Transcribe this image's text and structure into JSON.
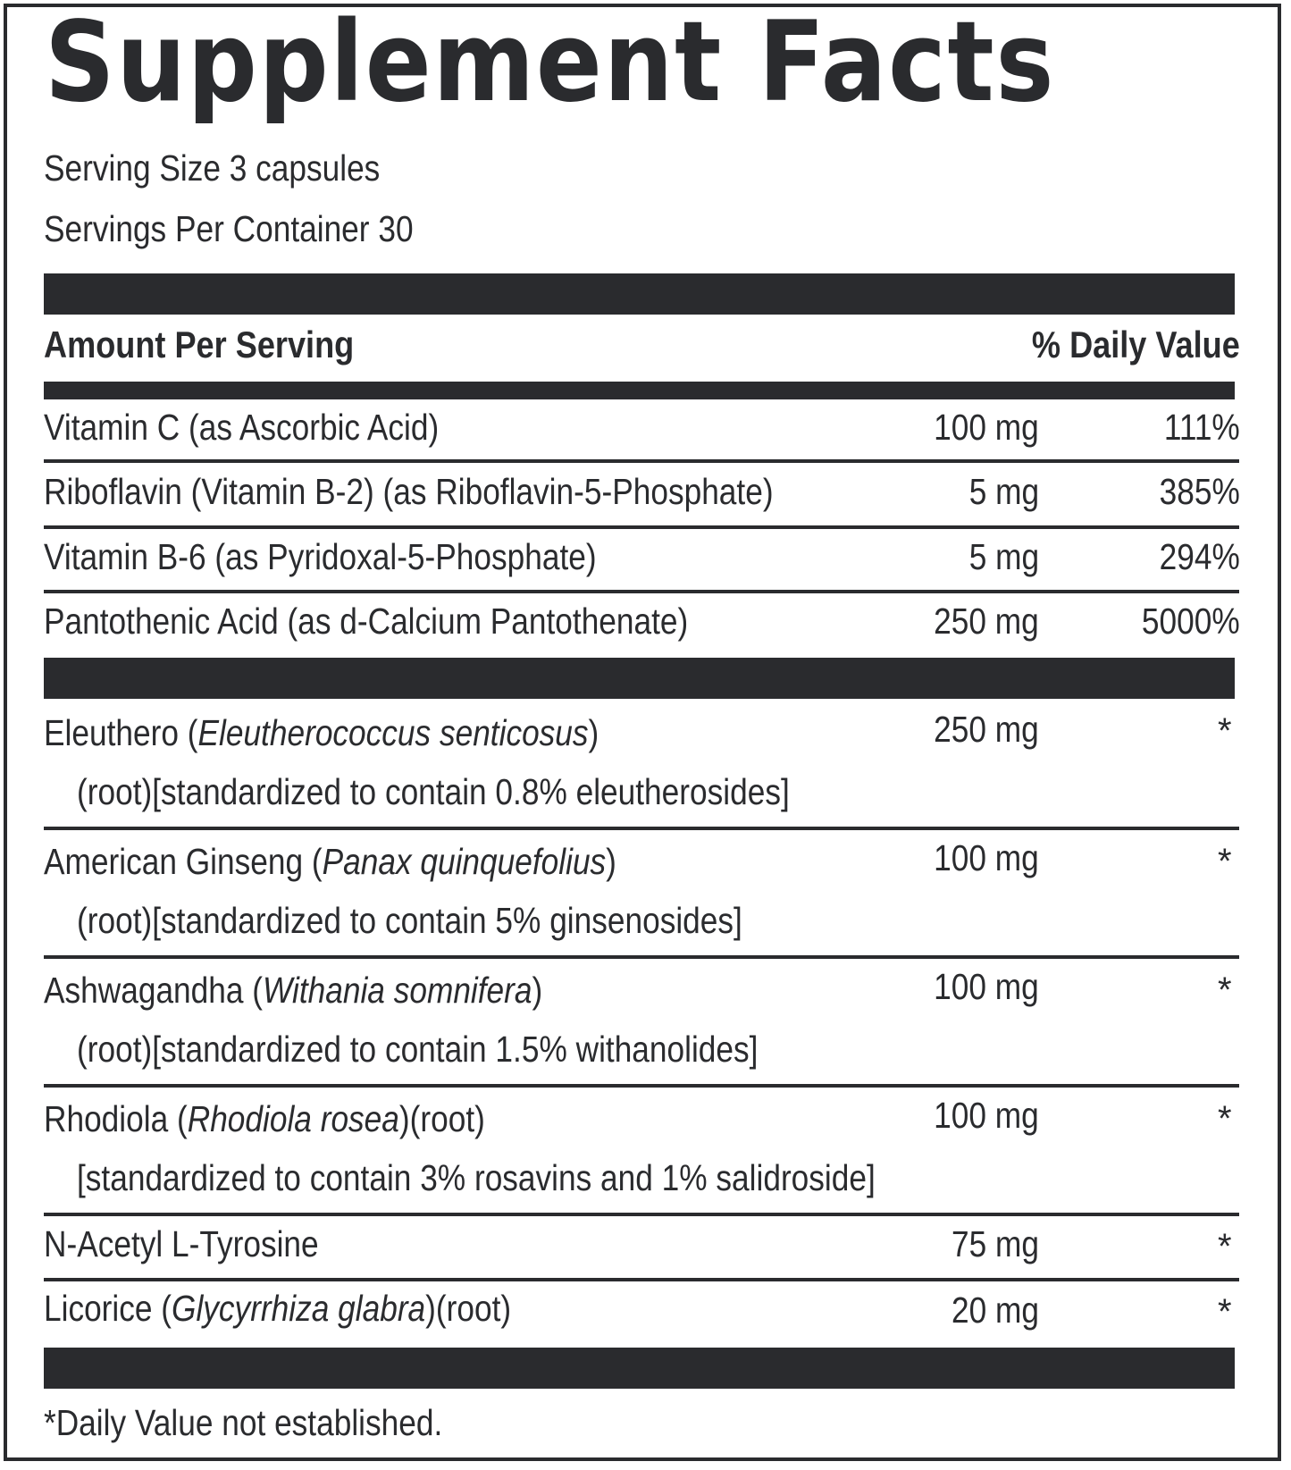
{
  "title": "Supplement Facts",
  "serving_size": "Serving Size 3 capsules",
  "servings_per_container": "Servings Per Container 30",
  "header": {
    "amount_per_serving": "Amount Per Serving",
    "daily_value": "% Daily Value"
  },
  "vitamins": [
    {
      "name": "Vitamin C (as Ascorbic Acid)",
      "amount": "100 mg",
      "dv": "111%"
    },
    {
      "name": "Riboflavin (Vitamin B-2) (as Riboflavin-5-Phosphate)",
      "amount": "5 mg",
      "dv": "385%"
    },
    {
      "name": "Vitamin B-6 (as Pyridoxal-5-Phosphate)",
      "amount": "5 mg",
      "dv": "294%"
    },
    {
      "name": "Pantothenic Acid (as d-Calcium Pantothenate)",
      "amount": "250 mg",
      "dv": "5000%"
    }
  ],
  "botanicals": [
    {
      "name": "Eleuthero (",
      "latin": "Eleutherococcus senticosus",
      "suffix": ")",
      "detail": "(root)[standardized to contain 0.8% eleutherosides]",
      "amount": "250 mg",
      "dv": "*"
    },
    {
      "name": "American Ginseng (",
      "latin": "Panax quinquefolius",
      "suffix": ")",
      "detail": "(root)[standardized to contain 5% ginsenosides]",
      "amount": "100 mg",
      "dv": "*"
    },
    {
      "name": "Ashwagandha (",
      "latin": "Withania somnifera",
      "suffix": ")",
      "detail": "(root)[standardized to contain 1.5% withanolides]",
      "amount": "100 mg",
      "dv": "*"
    },
    {
      "name": "Rhodiola (",
      "latin": "Rhodiola rosea",
      "suffix": ")(root)",
      "detail": "[standardized to contain 3% rosavins and 1% salidroside]",
      "amount": "100 mg",
      "dv": "*"
    },
    {
      "name": "N-Acetyl L-Tyrosine",
      "latin": "",
      "suffix": "",
      "detail": "",
      "amount": "75 mg",
      "dv": "*"
    },
    {
      "name": "Licorice (",
      "latin": "Glycyrrhiza glabra",
      "suffix": ")(root)",
      "detail": "",
      "amount": "20 mg",
      "dv": "*"
    }
  ],
  "footnote": "*Daily Value not established."
}
